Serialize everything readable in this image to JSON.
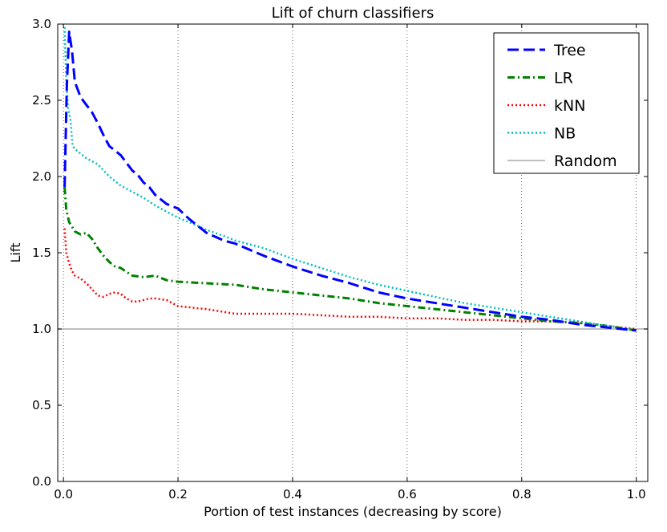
{
  "chart_data": {
    "type": "line",
    "title": "Lift of churn classifiers",
    "xlabel": "Portion of test instances (decreasing by score)",
    "ylabel": "Lift",
    "xlim": [
      -0.01,
      1.02
    ],
    "ylim": [
      0.0,
      3.0
    ],
    "xticks": [
      0.0,
      0.2,
      0.4,
      0.6,
      0.8,
      1.0
    ],
    "xtick_labels": [
      "0.0",
      "0.2",
      "0.4",
      "0.6",
      "0.8",
      "1.0"
    ],
    "yticks": [
      0.0,
      0.5,
      1.0,
      1.5,
      2.0,
      2.5,
      3.0
    ],
    "ytick_labels": [
      "0.0",
      "0.5",
      "1.0",
      "1.5",
      "2.0",
      "2.5",
      "3.0"
    ],
    "grid": "vertical dotted at x ticks",
    "legend_position": "top-right",
    "series": [
      {
        "name": "Tree",
        "color": "#0000ff",
        "style": "dashed",
        "x": [
          0.002,
          0.006,
          0.01,
          0.015,
          0.02,
          0.03,
          0.04,
          0.05,
          0.06,
          0.07,
          0.08,
          0.09,
          0.1,
          0.11,
          0.12,
          0.13,
          0.14,
          0.15,
          0.16,
          0.17,
          0.18,
          0.2,
          0.22,
          0.25,
          0.28,
          0.3,
          0.35,
          0.4,
          0.45,
          0.5,
          0.55,
          0.6,
          0.65,
          0.7,
          0.75,
          0.8,
          0.85,
          0.9,
          0.95,
          1.0
        ],
        "y": [
          1.93,
          2.6,
          2.95,
          2.82,
          2.62,
          2.52,
          2.47,
          2.42,
          2.35,
          2.27,
          2.2,
          2.17,
          2.14,
          2.09,
          2.04,
          2.01,
          1.96,
          1.93,
          1.88,
          1.85,
          1.82,
          1.79,
          1.72,
          1.63,
          1.58,
          1.56,
          1.48,
          1.41,
          1.35,
          1.3,
          1.24,
          1.2,
          1.17,
          1.14,
          1.11,
          1.08,
          1.06,
          1.03,
          1.01,
          0.99
        ]
      },
      {
        "name": "LR",
        "color": "#008000",
        "style": "dashdot",
        "x": [
          0.002,
          0.005,
          0.01,
          0.015,
          0.02,
          0.03,
          0.04,
          0.05,
          0.06,
          0.07,
          0.08,
          0.09,
          0.1,
          0.12,
          0.14,
          0.16,
          0.18,
          0.2,
          0.25,
          0.3,
          0.35,
          0.4,
          0.45,
          0.5,
          0.55,
          0.6,
          0.65,
          0.7,
          0.75,
          0.8,
          0.85,
          0.9,
          0.95,
          1.0
        ],
        "y": [
          1.93,
          1.78,
          1.7,
          1.67,
          1.64,
          1.62,
          1.63,
          1.59,
          1.53,
          1.48,
          1.44,
          1.41,
          1.4,
          1.35,
          1.34,
          1.35,
          1.32,
          1.31,
          1.3,
          1.29,
          1.26,
          1.24,
          1.22,
          1.2,
          1.17,
          1.15,
          1.13,
          1.11,
          1.09,
          1.07,
          1.05,
          1.04,
          1.02,
          0.99
        ]
      },
      {
        "name": "kNN",
        "color": "#ff0000",
        "style": "dotted",
        "x": [
          0.002,
          0.005,
          0.01,
          0.015,
          0.02,
          0.03,
          0.04,
          0.05,
          0.06,
          0.07,
          0.08,
          0.09,
          0.1,
          0.11,
          0.12,
          0.13,
          0.14,
          0.15,
          0.16,
          0.18,
          0.2,
          0.25,
          0.3,
          0.35,
          0.4,
          0.45,
          0.5,
          0.55,
          0.6,
          0.65,
          0.7,
          0.75,
          0.8,
          0.85,
          0.9,
          0.95,
          1.0
        ],
        "y": [
          1.66,
          1.5,
          1.43,
          1.38,
          1.35,
          1.33,
          1.3,
          1.26,
          1.22,
          1.21,
          1.23,
          1.24,
          1.23,
          1.2,
          1.18,
          1.18,
          1.19,
          1.2,
          1.2,
          1.19,
          1.15,
          1.13,
          1.1,
          1.1,
          1.1,
          1.09,
          1.08,
          1.08,
          1.07,
          1.07,
          1.06,
          1.06,
          1.05,
          1.05,
          1.04,
          1.02,
          1.0
        ]
      },
      {
        "name": "NB",
        "color": "#00bfbf",
        "style": "dotted",
        "x": [
          0.002,
          0.005,
          0.008,
          0.012,
          0.016,
          0.02,
          0.03,
          0.04,
          0.05,
          0.06,
          0.07,
          0.08,
          0.09,
          0.1,
          0.12,
          0.14,
          0.16,
          0.18,
          0.2,
          0.22,
          0.25,
          0.28,
          0.3,
          0.35,
          0.4,
          0.45,
          0.5,
          0.55,
          0.6,
          0.65,
          0.7,
          0.75,
          0.8,
          0.85,
          0.9,
          0.95,
          1.0
        ],
        "y": [
          2.98,
          2.62,
          2.45,
          2.38,
          2.2,
          2.18,
          2.15,
          2.12,
          2.1,
          2.08,
          2.04,
          2.0,
          1.97,
          1.94,
          1.9,
          1.86,
          1.81,
          1.77,
          1.73,
          1.7,
          1.65,
          1.61,
          1.58,
          1.53,
          1.46,
          1.4,
          1.34,
          1.29,
          1.25,
          1.21,
          1.17,
          1.14,
          1.11,
          1.08,
          1.05,
          1.02,
          0.99
        ]
      },
      {
        "name": "Random",
        "color": "#aaaaaa",
        "style": "solid",
        "x": [
          -0.01,
          1.02
        ],
        "y": [
          1.0,
          1.0
        ]
      }
    ]
  }
}
